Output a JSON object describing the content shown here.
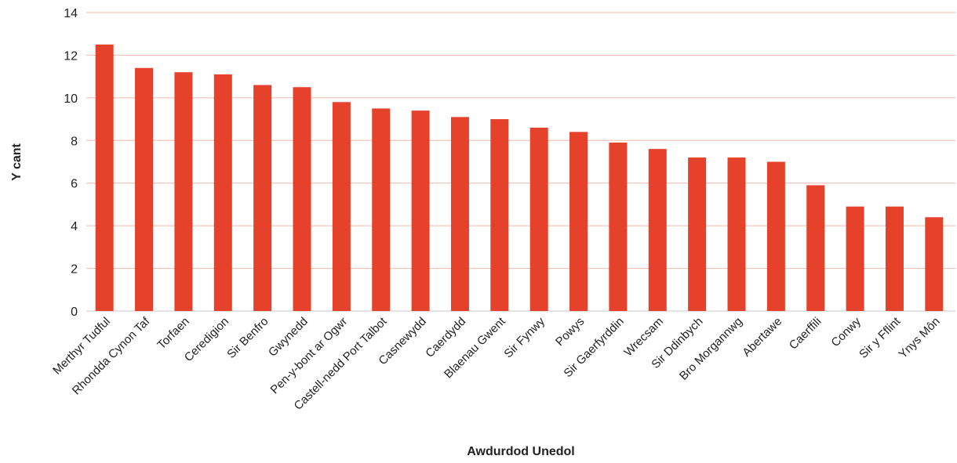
{
  "chart_data": {
    "type": "bar",
    "xlabel": "Awdurdod Unedol",
    "ylabel": "Y cant",
    "ylim": [
      0,
      14
    ],
    "yticks": [
      0,
      2,
      4,
      6,
      8,
      10,
      12,
      14
    ],
    "grid": true,
    "bar_color": "#e5412b",
    "categories": [
      "Merthyr Tudful",
      "Rhondda Cynon Taf",
      "Torfaen",
      "Ceredigion",
      "Sir Benfro",
      "Gwynedd",
      "Pen-y-bont ar Ogwr",
      "Castell-nedd Port Talbot",
      "Casnewydd",
      "Caerdydd",
      "Blaenau Gwent",
      "Sir Fynwy",
      "Powys",
      "Sir Gaerfyrddin",
      "Wrecsam",
      "Sir Ddinbych",
      "Bro Morgannwg",
      "Abertawe",
      "Caerffili",
      "Conwy",
      "Sir y Fflint",
      "Ynys Môn"
    ],
    "values": [
      12.5,
      11.4,
      11.2,
      11.1,
      10.6,
      10.5,
      9.8,
      9.5,
      9.4,
      9.1,
      9.0,
      8.6,
      8.4,
      7.9,
      7.6,
      7.2,
      7.2,
      7.0,
      5.9,
      4.9,
      4.9,
      4.4
    ]
  }
}
